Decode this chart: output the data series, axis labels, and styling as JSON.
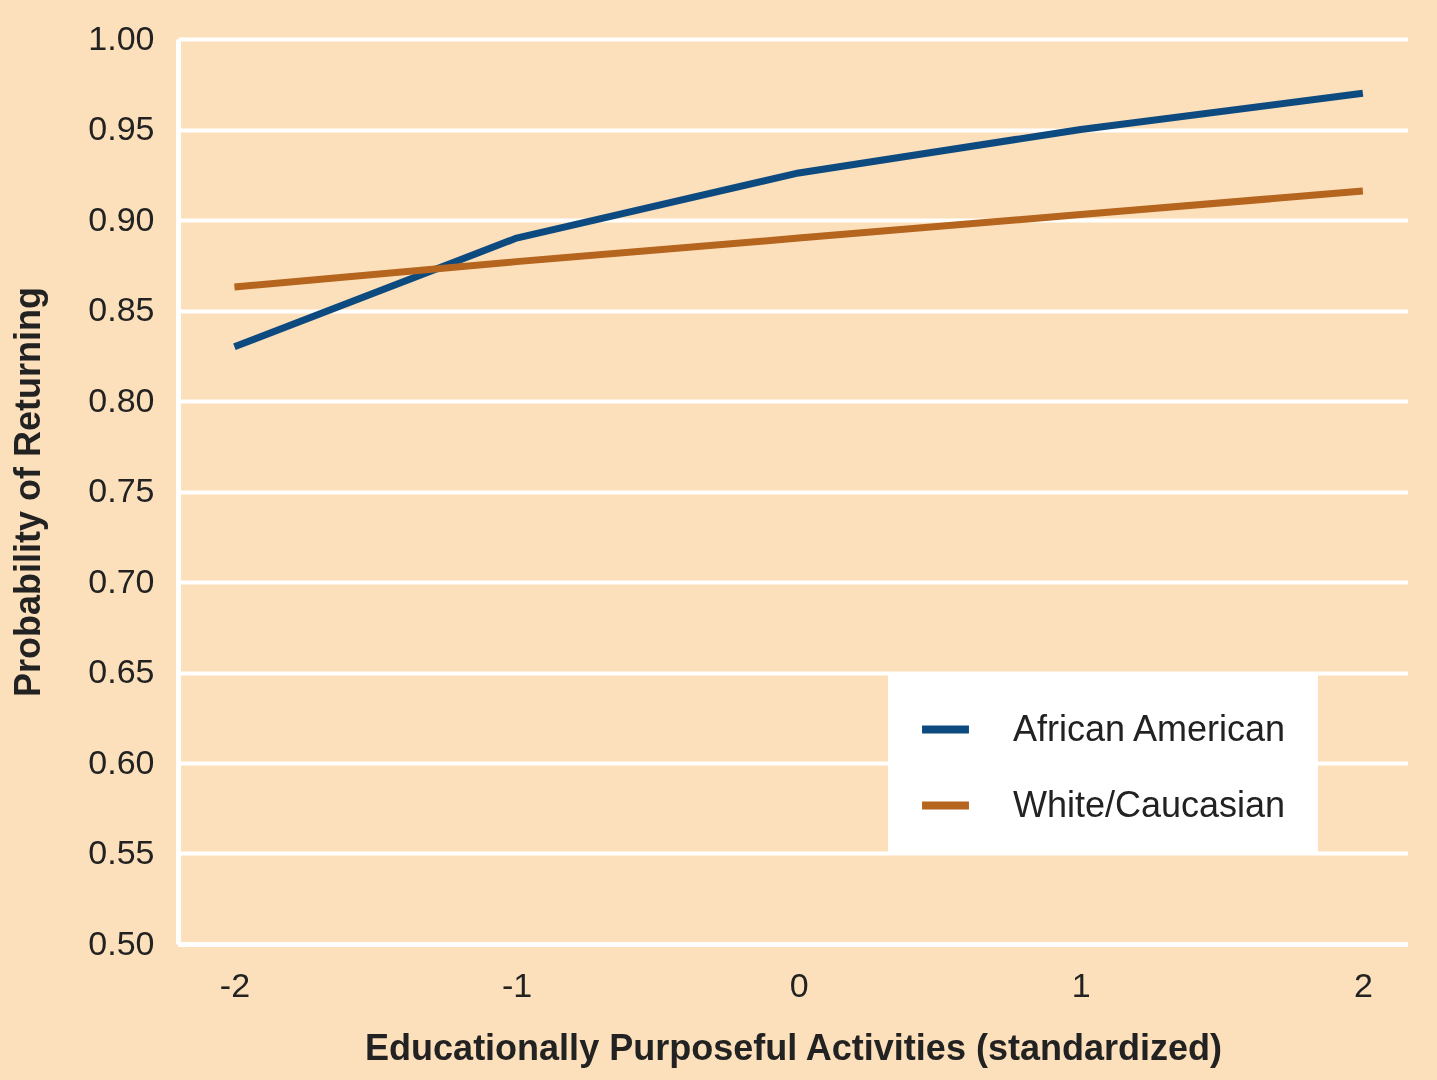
{
  "chart_data": {
    "type": "line",
    "xlabel": "Educationally Purposeful Activities (standardized)",
    "ylabel": "Probability of Returning",
    "x": [
      -2,
      -1,
      0,
      1,
      2
    ],
    "series": [
      {
        "name": "African American",
        "color": "#0d4a7f",
        "values": [
          0.83,
          0.89,
          0.926,
          0.95,
          0.97
        ]
      },
      {
        "name": "White/Caucasian",
        "color": "#b5651d",
        "values": [
          0.863,
          0.877,
          0.89,
          0.903,
          0.916
        ]
      }
    ],
    "xlim": [
      -2.2,
      2.16
    ],
    "xticks": [
      -2,
      -1,
      0,
      1,
      2
    ],
    "ylim": [
      0.5,
      1.0
    ],
    "yticks": [
      {
        "value": 0.5,
        "label": "0.50"
      },
      {
        "value": 0.55,
        "label": "0.55"
      },
      {
        "value": 0.6,
        "label": "0.60"
      },
      {
        "value": 0.65,
        "label": "0.65"
      },
      {
        "value": 0.7,
        "label": "0.70"
      },
      {
        "value": 0.75,
        "label": "0.75"
      },
      {
        "value": 0.8,
        "label": "0.80"
      },
      {
        "value": 0.85,
        "label": "0.85"
      },
      {
        "value": 0.9,
        "label": "0.90"
      },
      {
        "value": 0.95,
        "label": "0.95"
      },
      {
        "value": 1.0,
        "label": "1.00"
      }
    ],
    "grid": "y",
    "legend": "bottom right",
    "marker": "none",
    "line_style": "solid"
  }
}
